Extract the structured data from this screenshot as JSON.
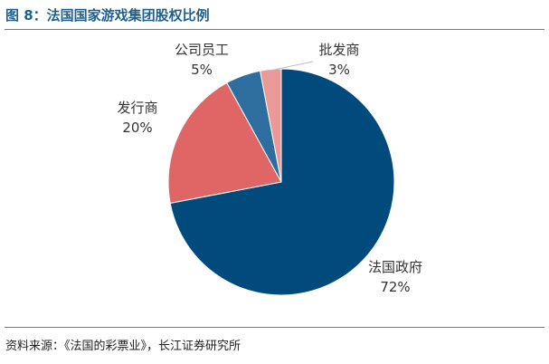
{
  "figure": {
    "title": "图 8：法国国家游戏集团股权比例",
    "source": "资料来源：《法国的彩票业》，长江证券研究所"
  },
  "chart_data": {
    "type": "pie",
    "title": "",
    "legend": "none",
    "start_angle_deg": 0,
    "direction": "clockwise",
    "slices": [
      {
        "name": "法国政府",
        "percent_label": "72%",
        "value": 72,
        "color": "#004a7c"
      },
      {
        "name": "发行商",
        "percent_label": "20%",
        "value": 20,
        "color": "#e06666"
      },
      {
        "name": "公司员工",
        "percent_label": "5%",
        "value": 5,
        "color": "#2e6e9e"
      },
      {
        "name": "批发商",
        "percent_label": "3%",
        "value": 3,
        "color": "#ea9999"
      }
    ]
  }
}
